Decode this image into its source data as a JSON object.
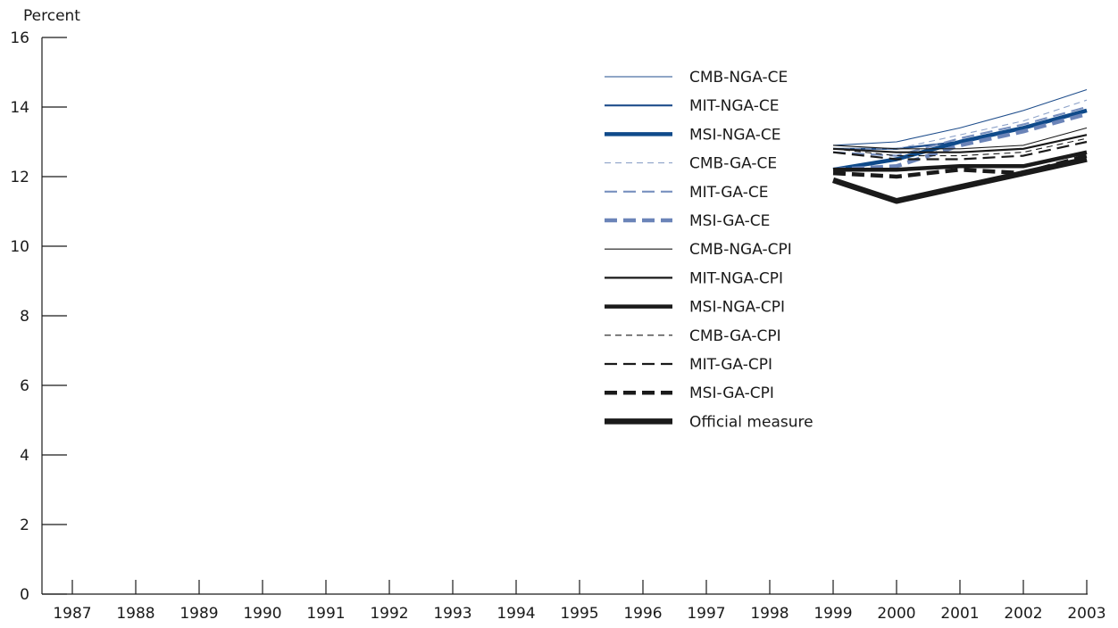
{
  "chart_data": {
    "type": "line",
    "title": "",
    "ylabel": "Percent",
    "xlabel": "",
    "ylim": [
      0,
      16
    ],
    "yticks": [
      0,
      2,
      4,
      6,
      8,
      10,
      12,
      14,
      16
    ],
    "yticklabels": [
      "0",
      "2",
      "4",
      "6",
      "8",
      "10",
      "12",
      "14",
      "16"
    ],
    "categories": [
      "1987",
      "1988",
      "1989",
      "1990",
      "1991",
      "1992",
      "1993",
      "1994",
      "1995",
      "1996",
      "1997",
      "1998",
      "1999",
      "2000",
      "2001",
      "2002",
      "2003"
    ],
    "grid": false,
    "legend_position": "top-right",
    "series": [
      {
        "name": "CMB-NGA-CE",
        "color": "#1f4e8c",
        "dash": "solid",
        "weight": "thin",
        "values": [
          null,
          null,
          null,
          null,
          null,
          null,
          null,
          null,
          null,
          null,
          null,
          null,
          12.9,
          13.0,
          13.4,
          13.9,
          14.5
        ]
      },
      {
        "name": "MIT-NGA-CE",
        "color": "#1f4e8c",
        "dash": "solid",
        "weight": "medium",
        "values": [
          null,
          null,
          null,
          null,
          null,
          null,
          null,
          null,
          null,
          null,
          null,
          null,
          12.8,
          12.8,
          13.0,
          13.4,
          13.9
        ]
      },
      {
        "name": "MSI-NGA-CE",
        "color": "#0f4a8a",
        "dash": "solid",
        "weight": "thick",
        "values": [
          null,
          null,
          null,
          null,
          null,
          null,
          null,
          null,
          null,
          null,
          null,
          null,
          12.2,
          12.5,
          13.0,
          13.4,
          13.9
        ]
      },
      {
        "name": "CMB-GA-CE",
        "color": "#8ea3c9",
        "dash": "short",
        "weight": "thin",
        "values": [
          null,
          null,
          null,
          null,
          null,
          null,
          null,
          null,
          null,
          null,
          null,
          null,
          12.8,
          12.8,
          13.2,
          13.6,
          14.2
        ]
      },
      {
        "name": "MIT-GA-CE",
        "color": "#7890bf",
        "dash": "long",
        "weight": "medium",
        "values": [
          null,
          null,
          null,
          null,
          null,
          null,
          null,
          null,
          null,
          null,
          null,
          null,
          12.7,
          12.6,
          13.1,
          13.5,
          14.0
        ]
      },
      {
        "name": "MSI-GA-CE",
        "color": "#6b84b8",
        "dash": "long",
        "weight": "thick",
        "values": [
          null,
          null,
          null,
          null,
          null,
          null,
          null,
          null,
          null,
          null,
          null,
          null,
          12.2,
          12.3,
          12.9,
          13.3,
          13.8
        ]
      },
      {
        "name": "CMB-NGA-CPI",
        "color": "#1a1a1a",
        "dash": "solid",
        "weight": "thin",
        "values": [
          null,
          null,
          null,
          null,
          null,
          null,
          null,
          null,
          null,
          null,
          null,
          null,
          12.9,
          12.8,
          12.8,
          12.9,
          13.4
        ]
      },
      {
        "name": "MIT-NGA-CPI",
        "color": "#1a1a1a",
        "dash": "solid",
        "weight": "medium",
        "values": [
          null,
          null,
          null,
          null,
          null,
          null,
          null,
          null,
          null,
          null,
          null,
          null,
          12.8,
          12.7,
          12.7,
          12.8,
          13.2
        ]
      },
      {
        "name": "MSI-NGA-CPI",
        "color": "#1a1a1a",
        "dash": "solid",
        "weight": "thick",
        "values": [
          null,
          null,
          null,
          null,
          null,
          null,
          null,
          null,
          null,
          null,
          null,
          null,
          12.2,
          12.2,
          12.3,
          12.3,
          12.7
        ]
      },
      {
        "name": "CMB-GA-CPI",
        "color": "#1a1a1a",
        "dash": "short",
        "weight": "thin",
        "values": [
          null,
          null,
          null,
          null,
          null,
          null,
          null,
          null,
          null,
          null,
          null,
          null,
          12.8,
          12.6,
          12.6,
          12.7,
          13.1
        ]
      },
      {
        "name": "MIT-GA-CPI",
        "color": "#1a1a1a",
        "dash": "long",
        "weight": "medium",
        "values": [
          null,
          null,
          null,
          null,
          null,
          null,
          null,
          null,
          null,
          null,
          null,
          null,
          12.7,
          12.5,
          12.5,
          12.6,
          13.0
        ]
      },
      {
        "name": "MSI-GA-CPI",
        "color": "#1a1a1a",
        "dash": "long",
        "weight": "thick",
        "values": [
          null,
          null,
          null,
          null,
          null,
          null,
          null,
          null,
          null,
          null,
          null,
          null,
          12.1,
          12.0,
          12.2,
          12.1,
          12.6
        ]
      },
      {
        "name": "Official measure",
        "color": "#1a1a1a",
        "dash": "solid",
        "weight": "heavy",
        "values": [
          null,
          null,
          null,
          null,
          null,
          null,
          null,
          null,
          null,
          null,
          null,
          null,
          11.9,
          11.3,
          11.7,
          12.1,
          12.5
        ]
      }
    ]
  }
}
